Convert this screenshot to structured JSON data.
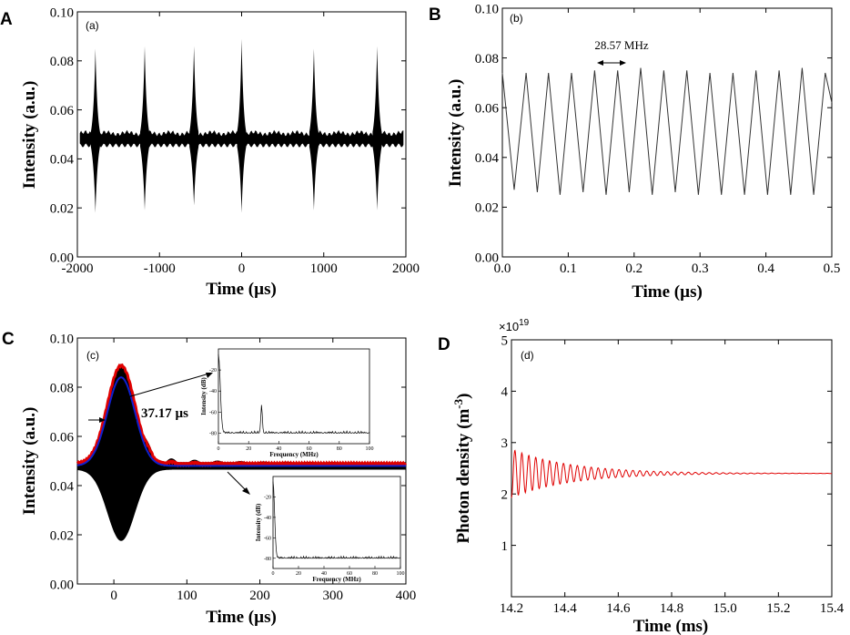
{
  "panels": {
    "A": {
      "letter": "A",
      "tag": "(a)",
      "title": "",
      "xlabel": "Time (µs)",
      "ylabel": "Intensity (a.u.)",
      "xticks": [
        "-2000",
        "-1000",
        "0",
        "1000",
        "2000"
      ],
      "yticks": [
        "0.00",
        "0.02",
        "0.04",
        "0.06",
        "0.08",
        "0.10"
      ]
    },
    "B": {
      "letter": "B",
      "tag": "(b)",
      "xlabel": "Time (µs)",
      "ylabel": "Intensity (a.u.)",
      "xticks": [
        "0.0",
        "0.1",
        "0.2",
        "0.3",
        "0.4",
        "0.5"
      ],
      "yticks": [
        "0.00",
        "0.02",
        "0.04",
        "0.06",
        "0.08",
        "0.10"
      ],
      "annotation": "28.57 MHz"
    },
    "C": {
      "letter": "C",
      "tag": "(c)",
      "xlabel": "Time (µs)",
      "ylabel": "Intensity (a.u.)",
      "xticks": [
        "0",
        "100",
        "200",
        "300",
        "400"
      ],
      "yticks": [
        "0.00",
        "0.02",
        "0.04",
        "0.06",
        "0.08",
        "0.10"
      ],
      "annotation": "37.17 µs",
      "inset": {
        "xlabel": "Frequency (MHz)",
        "ylabel": "Intensity (dB)",
        "xticks": [
          "0",
          "20",
          "40",
          "60",
          "80",
          "100"
        ],
        "yticks": [
          "-20",
          "-40",
          "-60",
          "-80"
        ]
      }
    },
    "D": {
      "letter": "D",
      "tag": "(d)",
      "xlabel": "Time (ms)",
      "ylabel": "Photon density (m",
      "ylabel_sup": "-3",
      "ylabel_end": ")",
      "multiplier": "×10",
      "multiplier_exp": "19",
      "xticks": [
        "14.2",
        "14.4",
        "14.6",
        "14.8",
        "15.0",
        "15.2",
        "15.4"
      ],
      "yticks": [
        "1",
        "2",
        "3",
        "4",
        "5"
      ]
    }
  },
  "chart_data": [
    {
      "type": "line",
      "panel": "A",
      "title": "(a)",
      "xlabel": "Time (µs)",
      "ylabel": "Intensity (a.u.)",
      "xlim": [
        -2000,
        2000
      ],
      "ylim": [
        0,
        0.1
      ],
      "baseline_center": 0.048,
      "baseline_halfwidth": 0.0025,
      "pulses": [
        {
          "t": -1780,
          "max": 0.085,
          "min": 0.018
        },
        {
          "t": -1180,
          "max": 0.086,
          "min": 0.019
        },
        {
          "t": -580,
          "max": 0.086,
          "min": 0.021
        },
        {
          "t": 0,
          "max": 0.089,
          "min": 0.018
        },
        {
          "t": 880,
          "max": 0.085,
          "min": 0.019
        },
        {
          "t": 1650,
          "max": 0.086,
          "min": 0.019
        }
      ]
    },
    {
      "type": "line",
      "panel": "B",
      "title": "(b)",
      "xlabel": "Time (µs)",
      "ylabel": "Intensity (a.u.)",
      "xlim": [
        0,
        0.5
      ],
      "ylim": [
        0,
        0.1
      ],
      "frequency_MHz": 28.57,
      "peak_times": [
        0.0,
        0.036,
        0.07,
        0.105,
        0.14,
        0.175,
        0.21,
        0.245,
        0.28,
        0.315,
        0.35,
        0.385,
        0.42,
        0.455,
        0.49
      ],
      "peak_values": [
        0.074,
        0.074,
        0.074,
        0.074,
        0.075,
        0.075,
        0.076,
        0.075,
        0.075,
        0.074,
        0.074,
        0.075,
        0.075,
        0.076,
        0.074
      ],
      "trough_values": [
        0.027,
        0.026,
        0.025,
        0.026,
        0.025,
        0.026,
        0.025,
        0.026,
        0.025,
        0.025,
        0.025,
        0.025,
        0.025,
        0.025,
        0.027
      ]
    },
    {
      "type": "line",
      "panel": "C",
      "title": "(c)",
      "xlabel": "Time (µs)",
      "ylabel": "Intensity (a.u.)",
      "xlim": [
        -50,
        400
      ],
      "ylim": [
        0,
        0.1
      ],
      "peak_time": 10,
      "envelope_max": 0.088,
      "envelope_min": 0.019,
      "fit_peak": 0.084,
      "baseline": 0.048,
      "fwhm_us": 37.17,
      "series": [
        {
          "name": "signal",
          "color": "#000000"
        },
        {
          "name": "upper envelope",
          "color": "#e00000"
        },
        {
          "name": "Gaussian fit",
          "color": "#1020d0"
        }
      ],
      "inset_top": {
        "xlim": [
          0,
          100
        ],
        "ylim": [
          -90,
          0
        ],
        "noise_floor": -80,
        "peaks": [
          {
            "f": 0,
            "dB": -5
          },
          {
            "f": 28.57,
            "dB": -53
          }
        ]
      },
      "inset_bottom": {
        "xlim": [
          0,
          100
        ],
        "ylim": [
          -90,
          0
        ],
        "noise_floor": -80,
        "peaks": [
          {
            "f": 0,
            "dB": -5
          }
        ]
      }
    },
    {
      "type": "line",
      "panel": "D",
      "title": "(d)",
      "xlabel": "Time (ms)",
      "ylabel": "Photon density (m^-3)",
      "multiplier": 1e+19,
      "xlim": [
        14.2,
        15.4
      ],
      "ylim": [
        0,
        5
      ],
      "steady_state": 2.4,
      "initial_max": 2.9,
      "initial_min": 1.95,
      "period_ms": 0.026,
      "decay_ms": 0.22,
      "color": "#e00000"
    }
  ]
}
